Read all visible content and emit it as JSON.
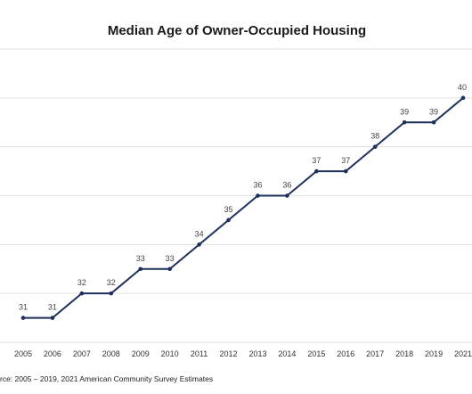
{
  "title": "Median Age of Owner-Occupied Housing",
  "source": "rce: 2005 – 2019, 2021 American Community Survey Estimates",
  "colors": {
    "series": "#1f2f5c",
    "grid": "#e0e0e0"
  },
  "chart_data": {
    "type": "line",
    "title": "Median Age of Owner-Occupied Housing",
    "xlabel": "",
    "ylabel": "",
    "categories": [
      "2005",
      "2006",
      "2007",
      "2008",
      "2009",
      "2010",
      "2011",
      "2012",
      "2013",
      "2014",
      "2015",
      "2016",
      "2017",
      "2018",
      "2019",
      "2021"
    ],
    "series": [
      {
        "values": [
          31,
          31,
          32,
          32,
          33,
          33,
          34,
          35,
          36,
          36,
          37,
          37,
          38,
          39,
          39,
          40
        ]
      }
    ],
    "ylim": [
      30,
      42
    ],
    "y_gridlines": [
      30,
      32,
      34,
      36,
      38,
      40,
      42
    ],
    "grid": true,
    "legend": "none"
  }
}
